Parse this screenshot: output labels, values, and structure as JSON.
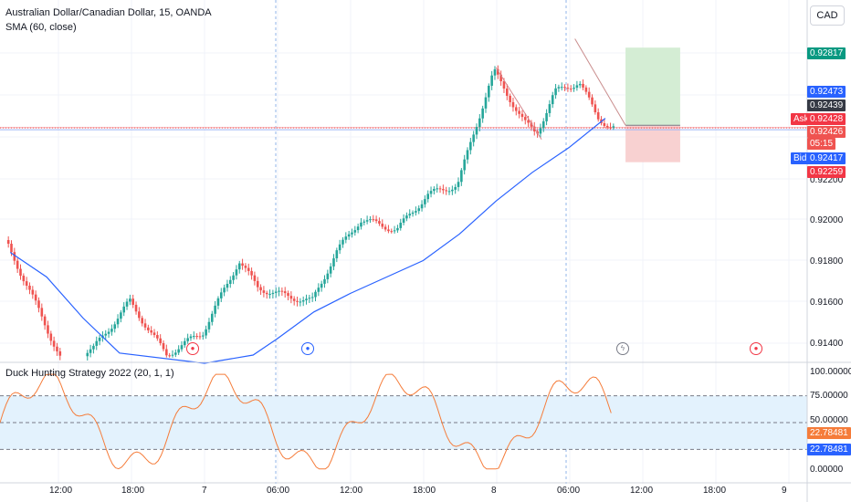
{
  "header": {
    "symbol_title": "Australian Dollar/Canadian Dollar, 15, OANDA",
    "sma_label": "SMA (60, close)",
    "currency_button": "CAD"
  },
  "price_axis": {
    "ticks": [
      "0.92200",
      "0.92000",
      "0.91800",
      "0.91600",
      "0.91400"
    ],
    "tags": {
      "target": "0.92817",
      "sma_value": "0.92473",
      "last_price": "0.92439",
      "ask_label": "Ask",
      "ask": "0.92428",
      "current": "0.92426",
      "countdown": "05:15",
      "bid_label": "Bid",
      "bid": "0.92417",
      "stop": "0.92259"
    }
  },
  "time_axis": {
    "ticks": [
      "12:00",
      "18:00",
      "7",
      "06:00",
      "12:00",
      "18:00",
      "8",
      "06:00",
      "12:00",
      "18:00",
      "9"
    ]
  },
  "oscillator": {
    "title": "Duck Hunting Strategy 2022 (20, 1, 1)",
    "ticks": [
      "100.00000",
      "75.00000",
      "50.00000",
      "25.00000",
      "0.00000"
    ],
    "value_tags": [
      "22.78481",
      "22.78481"
    ]
  },
  "colors": {
    "up": "#26a69a",
    "down": "#ef5350",
    "sma": "#2962ff",
    "oscillator": "#f57c3a",
    "band_fill": "#e3f2fd",
    "target_zone": "#d4edd4",
    "stop_zone": "#f8d1d1",
    "target_tag": "#089981",
    "blue_tag": "#2962ff",
    "dark_tag": "#363a45",
    "red_tag": "#f23645"
  },
  "chart_data": [
    {
      "type": "candlestick",
      "title": "Australian Dollar/Canadian Dollar, 15, OANDA",
      "interval": "15",
      "y_range": [
        0.913,
        0.9298
      ],
      "series": [
        {
          "name": "SMA (60, close)",
          "type": "line",
          "points": [
            [
              "06 08:00",
              0.9182
            ],
            [
              "06 11:00",
              0.917
            ],
            [
              "06 14:00",
              0.915
            ],
            [
              "06 17:00",
              0.9133
            ],
            [
              "07 00:00",
              0.9128
            ],
            [
              "07 04:00",
              0.9132
            ],
            [
              "07 06:00",
              0.914
            ],
            [
              "07 09:00",
              0.9153
            ],
            [
              "07 12:00",
              0.9162
            ],
            [
              "07 15:00",
              0.917
            ],
            [
              "07 18:00",
              0.9178
            ],
            [
              "07 21:00",
              0.9191
            ],
            [
              "08 00:00",
              0.9207
            ],
            [
              "08 03:00",
              0.9221
            ],
            [
              "08 06:00",
              0.9233
            ],
            [
              "08 09:00",
              0.92473
            ]
          ]
        }
      ],
      "levels": {
        "ask": 0.92428,
        "bid": 0.92417,
        "last": 0.92426,
        "target": 0.92817,
        "entry": 0.92439,
        "stop": 0.92259
      },
      "x_ticks": [
        "12:00",
        "18:00",
        "7",
        "06:00",
        "12:00",
        "18:00",
        "8",
        "06:00",
        "12:00",
        "18:00",
        "9"
      ],
      "y_ticks": [
        0.922,
        0.92,
        0.918,
        0.916,
        0.914
      ],
      "legend": "top-left"
    },
    {
      "type": "line",
      "title": "Duck Hunting Strategy 2022 (20, 1, 1)",
      "ylim": [
        0,
        100
      ],
      "bands": [
        22.78481,
        50,
        77.2
      ],
      "last_value": 22.78481,
      "y_ticks": [
        100,
        75,
        50,
        25,
        0
      ]
    }
  ]
}
